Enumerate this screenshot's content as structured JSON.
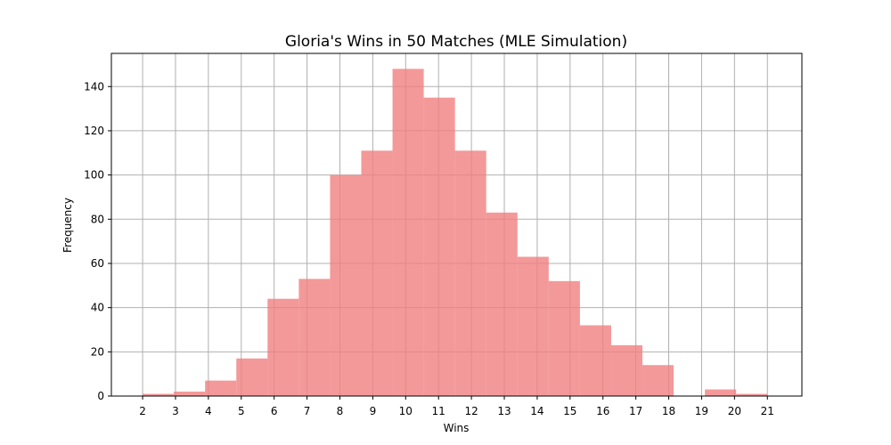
{
  "chart_data": {
    "type": "bar",
    "title": "Gloria's Wins in 50 Matches (MLE Simulation)",
    "xlabel": "Wins",
    "ylabel": "Frequency",
    "bar_color": "#f08080",
    "bar_opacity": 0.8,
    "grid": true,
    "xlim": [
      1.05,
      22.05
    ],
    "ylim": [
      0,
      155
    ],
    "x_ticks": [
      2,
      3,
      4,
      5,
      6,
      7,
      8,
      9,
      10,
      11,
      12,
      13,
      14,
      15,
      16,
      17,
      18,
      19,
      20,
      21
    ],
    "y_ticks": [
      0,
      20,
      40,
      60,
      80,
      100,
      120,
      140
    ],
    "bins": [
      {
        "start": 2.0,
        "end": 2.95,
        "value": 1
      },
      {
        "start": 2.95,
        "end": 3.9,
        "value": 2
      },
      {
        "start": 3.9,
        "end": 4.85,
        "value": 7
      },
      {
        "start": 4.85,
        "end": 5.8,
        "value": 17
      },
      {
        "start": 5.8,
        "end": 6.75,
        "value": 44
      },
      {
        "start": 6.75,
        "end": 7.7,
        "value": 53
      },
      {
        "start": 7.7,
        "end": 8.65,
        "value": 100
      },
      {
        "start": 8.65,
        "end": 9.6,
        "value": 111
      },
      {
        "start": 9.6,
        "end": 10.55,
        "value": 148
      },
      {
        "start": 10.55,
        "end": 11.5,
        "value": 135
      },
      {
        "start": 11.5,
        "end": 12.45,
        "value": 111
      },
      {
        "start": 12.45,
        "end": 13.4,
        "value": 83
      },
      {
        "start": 13.4,
        "end": 14.35,
        "value": 63
      },
      {
        "start": 14.35,
        "end": 15.3,
        "value": 52
      },
      {
        "start": 15.3,
        "end": 16.25,
        "value": 32
      },
      {
        "start": 16.25,
        "end": 17.2,
        "value": 23
      },
      {
        "start": 17.2,
        "end": 18.15,
        "value": 14
      },
      {
        "start": 18.15,
        "end": 19.1,
        "value": 0
      },
      {
        "start": 19.1,
        "end": 20.05,
        "value": 3
      },
      {
        "start": 20.05,
        "end": 21.0,
        "value": 1
      }
    ]
  }
}
